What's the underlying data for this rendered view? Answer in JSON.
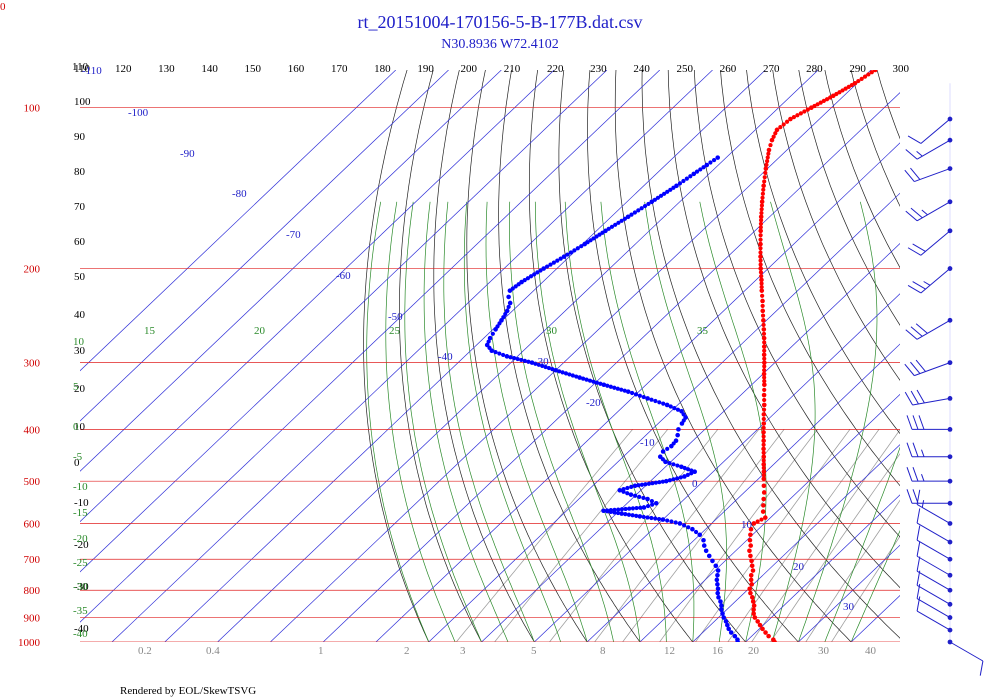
{
  "chart_data": {
    "type": "scatter",
    "title": "rt_20151004-170156-5-B-177B.dat.csv",
    "subtitle": "N30.8936 W72.4102",
    "footer": "Rendered by EOL/SkewTSVG",
    "corner_label": "0",
    "top_axis_ticks": [
      "110",
      "120",
      "130",
      "140",
      "150",
      "160",
      "170",
      "180",
      "190",
      "200",
      "210",
      "220",
      "230",
      "240",
      "250",
      "260",
      "270",
      "280",
      "290",
      "300"
    ],
    "pressure_levels": [
      {
        "label": "100",
        "p": 100
      },
      {
        "label": "200",
        "p": 200
      },
      {
        "label": "300",
        "p": 300
      },
      {
        "label": "400",
        "p": 400
      },
      {
        "label": "500",
        "p": 500
      },
      {
        "label": "600",
        "p": 600
      },
      {
        "label": "700",
        "p": 700
      },
      {
        "label": "800",
        "p": 800
      },
      {
        "label": "900",
        "p": 900
      },
      {
        "label": "1000",
        "p": 1000
      }
    ],
    "left_black_labels": [
      "110",
      "100",
      "90",
      "80",
      "70",
      "60",
      "50",
      "40",
      "30",
      "20",
      "10",
      "0",
      "-10",
      "-20",
      "-30",
      "-40"
    ],
    "isotherm_labels": [
      "-110",
      "-100",
      "-90",
      "-80",
      "-70",
      "-60",
      "-50",
      "-40",
      "-30",
      "-20",
      "-10",
      "0",
      "10",
      "20",
      "30"
    ],
    "dry_adiabat_labels": [
      "15",
      "20",
      "25",
      "30",
      "35"
    ],
    "moist_left_labels": [
      "10",
      "5",
      "0",
      "-5",
      "-10",
      "-15",
      "-20",
      "-25",
      "-30",
      "-35",
      "-40"
    ],
    "mixing_ratio_labels": [
      "0.2",
      "0.4",
      "1",
      "2",
      "3",
      "5",
      "8",
      "12",
      "16",
      "20",
      "30",
      "40"
    ],
    "series": [
      {
        "name": "Temperature",
        "color": "#ff0000",
        "points": [
          {
            "p": 1000,
            "t": 25.5
          },
          {
            "p": 990,
            "t": 24.8
          },
          {
            "p": 975,
            "t": 23.2
          },
          {
            "p": 960,
            "t": 21.9
          },
          {
            "p": 945,
            "t": 20.6
          },
          {
            "p": 930,
            "t": 19.4
          },
          {
            "p": 915,
            "t": 18.2
          },
          {
            "p": 900,
            "t": 16.9
          },
          {
            "p": 885,
            "t": 15.9
          },
          {
            "p": 870,
            "t": 15.1
          },
          {
            "p": 855,
            "t": 14.4
          },
          {
            "p": 840,
            "t": 13.4
          },
          {
            "p": 825,
            "t": 12.4
          },
          {
            "p": 810,
            "t": 11.2
          },
          {
            "p": 795,
            "t": 10.2
          },
          {
            "p": 780,
            "t": 9.7
          },
          {
            "p": 765,
            "t": 8.7
          },
          {
            "p": 750,
            "t": 7.8
          },
          {
            "p": 735,
            "t": 7.2
          },
          {
            "p": 720,
            "t": 6.1
          },
          {
            "p": 705,
            "t": 5.0
          },
          {
            "p": 690,
            "t": 3.8
          },
          {
            "p": 675,
            "t": 2.6
          },
          {
            "p": 660,
            "t": 1.8
          },
          {
            "p": 645,
            "t": 0.6
          },
          {
            "p": 630,
            "t": -0.4
          },
          {
            "p": 615,
            "t": -1.4
          },
          {
            "p": 600,
            "t": -2.0
          },
          {
            "p": 585,
            "t": -1.0
          },
          {
            "p": 570,
            "t": -2.6
          },
          {
            "p": 555,
            "t": -3.8
          },
          {
            "p": 540,
            "t": -5.0
          },
          {
            "p": 525,
            "t": -6.2
          },
          {
            "p": 510,
            "t": -7.6
          },
          {
            "p": 495,
            "t": -9.0
          },
          {
            "p": 480,
            "t": -10.4
          },
          {
            "p": 465,
            "t": -11.9
          },
          {
            "p": 450,
            "t": -13.4
          },
          {
            "p": 435,
            "t": -15.0
          },
          {
            "p": 420,
            "t": -16.6
          },
          {
            "p": 405,
            "t": -18.3
          },
          {
            "p": 390,
            "t": -20.0
          },
          {
            "p": 375,
            "t": -21.8
          },
          {
            "p": 360,
            "t": -23.6
          },
          {
            "p": 345,
            "t": -25.6
          },
          {
            "p": 330,
            "t": -27.6
          },
          {
            "p": 315,
            "t": -29.8
          },
          {
            "p": 300,
            "t": -32.0
          },
          {
            "p": 290,
            "t": -33.6
          },
          {
            "p": 280,
            "t": -35.2
          },
          {
            "p": 270,
            "t": -36.9
          },
          {
            "p": 260,
            "t": -38.7
          },
          {
            "p": 250,
            "t": -40.6
          },
          {
            "p": 240,
            "t": -42.6
          },
          {
            "p": 230,
            "t": -44.6
          },
          {
            "p": 220,
            "t": -46.8
          },
          {
            "p": 210,
            "t": -49.0
          },
          {
            "p": 200,
            "t": -51.4
          },
          {
            "p": 190,
            "t": -53.8
          },
          {
            "p": 180,
            "t": -56.3
          },
          {
            "p": 170,
            "t": -58.9
          },
          {
            "p": 160,
            "t": -61.6
          },
          {
            "p": 150,
            "t": -64.4
          },
          {
            "p": 140,
            "t": -67.3
          },
          {
            "p": 130,
            "t": -70.3
          },
          {
            "p": 120,
            "t": -73.4
          },
          {
            "p": 115,
            "t": -74.8
          },
          {
            "p": 110,
            "t": -75.9
          },
          {
            "p": 105,
            "t": -75.5
          },
          {
            "p": 100,
            "t": -73.8
          },
          {
            "p": 95,
            "t": -72.0
          },
          {
            "p": 90,
            "t": -70.4
          },
          {
            "p": 85,
            "t": -69.2
          },
          {
            "p": 80,
            "t": -68.6
          },
          {
            "p": 78,
            "t": -67.4
          },
          {
            "p": 76,
            "t": -66.2
          }
        ]
      },
      {
        "name": "Dew point",
        "color": "#0000ff",
        "points": [
          {
            "p": 1000,
            "t": 18.5
          },
          {
            "p": 990,
            "t": 18.0
          },
          {
            "p": 975,
            "t": 16.8
          },
          {
            "p": 960,
            "t": 15.4
          },
          {
            "p": 945,
            "t": 14.2
          },
          {
            "p": 930,
            "t": 13.2
          },
          {
            "p": 915,
            "t": 12.2
          },
          {
            "p": 900,
            "t": 11.0
          },
          {
            "p": 885,
            "t": 10.0
          },
          {
            "p": 870,
            "t": 9.0
          },
          {
            "p": 855,
            "t": 8.2
          },
          {
            "p": 840,
            "t": 7.2
          },
          {
            "p": 825,
            "t": 6.0
          },
          {
            "p": 810,
            "t": 5.0
          },
          {
            "p": 795,
            "t": 4.2
          },
          {
            "p": 780,
            "t": 3.2
          },
          {
            "p": 765,
            "t": 2.2
          },
          {
            "p": 750,
            "t": 1.4
          },
          {
            "p": 735,
            "t": 0.6
          },
          {
            "p": 720,
            "t": -0.8
          },
          {
            "p": 705,
            "t": -2.4
          },
          {
            "p": 690,
            "t": -4.0
          },
          {
            "p": 675,
            "t": -5.6
          },
          {
            "p": 660,
            "t": -7.0
          },
          {
            "p": 645,
            "t": -8.2
          },
          {
            "p": 630,
            "t": -10.0
          },
          {
            "p": 615,
            "t": -12.5
          },
          {
            "p": 600,
            "t": -16.0
          },
          {
            "p": 590,
            "t": -20.0
          },
          {
            "p": 582,
            "t": -25.0
          },
          {
            "p": 575,
            "t": -29.0
          },
          {
            "p": 568,
            "t": -33.0
          },
          {
            "p": 560,
            "t": -26.0
          },
          {
            "p": 550,
            "t": -24.5
          },
          {
            "p": 540,
            "t": -27.0
          },
          {
            "p": 530,
            "t": -31.0
          },
          {
            "p": 520,
            "t": -34.0
          },
          {
            "p": 510,
            "t": -32.0
          },
          {
            "p": 500,
            "t": -27.0
          },
          {
            "p": 490,
            "t": -24.5
          },
          {
            "p": 480,
            "t": -23.5
          },
          {
            "p": 470,
            "t": -27.0
          },
          {
            "p": 460,
            "t": -31.0
          },
          {
            "p": 450,
            "t": -33.0
          },
          {
            "p": 440,
            "t": -33.5
          },
          {
            "p": 430,
            "t": -33.0
          },
          {
            "p": 420,
            "t": -33.2
          },
          {
            "p": 410,
            "t": -34.0
          },
          {
            "p": 400,
            "t": -35.0
          },
          {
            "p": 390,
            "t": -35.5
          },
          {
            "p": 380,
            "t": -36.0
          },
          {
            "p": 370,
            "t": -38.0
          },
          {
            "p": 360,
            "t": -42.0
          },
          {
            "p": 350,
            "t": -47.0
          },
          {
            "p": 340,
            "t": -52.0
          },
          {
            "p": 330,
            "t": -58.0
          },
          {
            "p": 320,
            "t": -64.0
          },
          {
            "p": 310,
            "t": -70.0
          },
          {
            "p": 300,
            "t": -76.0
          },
          {
            "p": 292,
            "t": -82.0
          },
          {
            "p": 285,
            "t": -86.0
          },
          {
            "p": 278,
            "t": -88.0
          },
          {
            "p": 270,
            "t": -88.8
          },
          {
            "p": 260,
            "t": -89.5
          },
          {
            "p": 250,
            "t": -90.2
          },
          {
            "p": 240,
            "t": -91.0
          },
          {
            "p": 232,
            "t": -92.0
          },
          {
            "p": 226,
            "t": -93.5
          },
          {
            "p": 220,
            "t": -94.5
          },
          {
            "p": 212,
            "t": -94.0
          },
          {
            "p": 200,
            "t": -92.5
          },
          {
            "p": 190,
            "t": -91.0
          },
          {
            "p": 180,
            "t": -89.6
          },
          {
            "p": 170,
            "t": -88.3
          },
          {
            "p": 160,
            "t": -86.8
          },
          {
            "p": 150,
            "t": -85.3
          },
          {
            "p": 140,
            "t": -83.8
          },
          {
            "p": 133,
            "t": -82.9
          },
          {
            "p": 128,
            "t": -82.2
          },
          {
            "p": 124,
            "t": -81.6
          }
        ]
      }
    ],
    "wind_barbs": [
      {
        "p": 1000,
        "dir": 120,
        "speed": 10
      },
      {
        "p": 950,
        "dir": 300,
        "speed": 10
      },
      {
        "p": 900,
        "dir": 300,
        "speed": 10
      },
      {
        "p": 850,
        "dir": 300,
        "speed": 10
      },
      {
        "p": 800,
        "dir": 300,
        "speed": 10
      },
      {
        "p": 750,
        "dir": 300,
        "speed": 10
      },
      {
        "p": 700,
        "dir": 300,
        "speed": 10
      },
      {
        "p": 650,
        "dir": 300,
        "speed": 10
      },
      {
        "p": 600,
        "dir": 300,
        "speed": 15
      },
      {
        "p": 550,
        "dir": 270,
        "speed": 20
      },
      {
        "p": 500,
        "dir": 270,
        "speed": 25
      },
      {
        "p": 450,
        "dir": 270,
        "speed": 25
      },
      {
        "p": 400,
        "dir": 270,
        "speed": 30
      },
      {
        "p": 350,
        "dir": 260,
        "speed": 30
      },
      {
        "p": 300,
        "dir": 250,
        "speed": 30
      },
      {
        "p": 250,
        "dir": 240,
        "speed": 30
      },
      {
        "p": 200,
        "dir": 230,
        "speed": 25
      },
      {
        "p": 170,
        "dir": 230,
        "speed": 20
      },
      {
        "p": 150,
        "dir": 240,
        "speed": 25
      },
      {
        "p": 130,
        "dir": 250,
        "speed": 20
      },
      {
        "p": 115,
        "dir": 240,
        "speed": 15
      },
      {
        "p": 105,
        "dir": 230,
        "speed": 10
      }
    ]
  }
}
